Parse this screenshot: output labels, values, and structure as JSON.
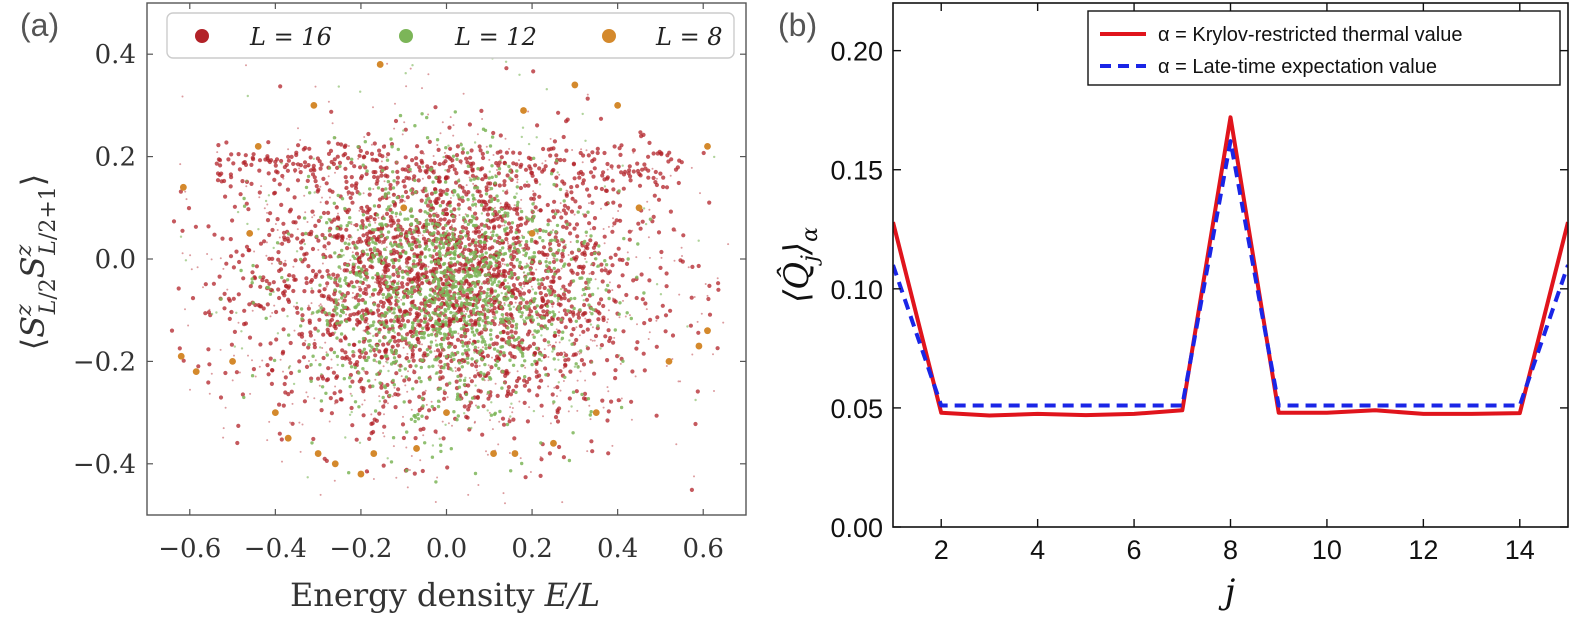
{
  "panels": {
    "a": {
      "letter": "(a)"
    },
    "b": {
      "letter": "(b)"
    }
  },
  "colors": {
    "L16": "#b22228",
    "L12": "#7cb558",
    "L8": "#d4892c",
    "thermal": "#e0141c",
    "late": "#1a25e6"
  },
  "chart_data": [
    {
      "type": "scatter",
      "xlabel": "Energy density E/L",
      "ylabel": "⟨S^z_{L/2} S^z_{L/2+1}⟩",
      "xlim": [
        -0.7,
        0.7
      ],
      "ylim": [
        -0.5,
        0.5
      ],
      "xticks": [
        "−0.6",
        "−0.4",
        "−0.2",
        "0.0",
        "0.2",
        "0.4",
        "0.6"
      ],
      "yticks": [
        "0.4",
        "0.2",
        "0.0",
        "−0.2",
        "−0.4"
      ],
      "legend_position": "top",
      "series": [
        {
          "name": "L = 16",
          "note": "dense cloud of eigenstates spanning roughly E/L ∈ [−0.65, 0.62], values concentrated in [−0.35, 0.25] with a band near 0.18"
        },
        {
          "name": "L = 12",
          "note": "medium-density cloud concentrated near the center, roughly E/L ∈ [−0.5, 0.5]"
        },
        {
          "name": "L = 8",
          "points": [
            [
              -0.155,
              0.38
            ],
            [
              -0.31,
              0.3
            ],
            [
              -0.44,
              0.22
            ],
            [
              0.18,
              0.29
            ],
            [
              0.3,
              0.34
            ],
            [
              0.4,
              0.3
            ],
            [
              0.61,
              0.22
            ],
            [
              -0.615,
              0.14
            ],
            [
              -0.62,
              -0.19
            ],
            [
              -0.585,
              -0.22
            ],
            [
              0.59,
              -0.17
            ],
            [
              0.61,
              -0.14
            ],
            [
              -0.37,
              -0.35
            ],
            [
              -0.3,
              -0.38
            ],
            [
              -0.26,
              -0.4
            ],
            [
              -0.17,
              -0.38
            ],
            [
              -0.07,
              -0.37
            ],
            [
              0.11,
              -0.38
            ],
            [
              0.16,
              -0.38
            ],
            [
              0.25,
              -0.36
            ],
            [
              -0.2,
              -0.42
            ],
            [
              0.0,
              -0.3
            ],
            [
              -0.5,
              -0.2
            ],
            [
              0.52,
              -0.2
            ],
            [
              0.35,
              -0.3
            ],
            [
              -0.4,
              -0.3
            ],
            [
              0.45,
              0.1
            ],
            [
              -0.46,
              0.05
            ],
            [
              0.2,
              0.05
            ],
            [
              -0.1,
              0.1
            ]
          ]
        }
      ]
    },
    {
      "type": "line",
      "xlabel": "j",
      "ylabel": "⟨Q̂_j⟩_α",
      "xlim": [
        1,
        15
      ],
      "ylim": [
        0,
        0.22
      ],
      "xticks": [
        "2",
        "4",
        "6",
        "8",
        "10",
        "12",
        "14"
      ],
      "yticks": [
        "0.20",
        "0.15",
        "0.10",
        "0.05",
        "0.00"
      ],
      "x": [
        1,
        2,
        3,
        4,
        5,
        6,
        7,
        8,
        9,
        10,
        11,
        12,
        13,
        14,
        15
      ],
      "legend_position": "top-right",
      "series": [
        {
          "name": "α = Krylov-restricted thermal value",
          "values": [
            0.128,
            0.048,
            0.0468,
            0.0475,
            0.047,
            0.0475,
            0.049,
            0.172,
            0.048,
            0.048,
            0.049,
            0.0475,
            0.0475,
            0.0478,
            0.128
          ]
        },
        {
          "name": "α = Late-time expectation value",
          "values": [
            0.11,
            0.051,
            0.051,
            0.051,
            0.051,
            0.051,
            0.051,
            0.162,
            0.051,
            0.051,
            0.051,
            0.051,
            0.051,
            0.051,
            0.11
          ]
        }
      ]
    }
  ]
}
